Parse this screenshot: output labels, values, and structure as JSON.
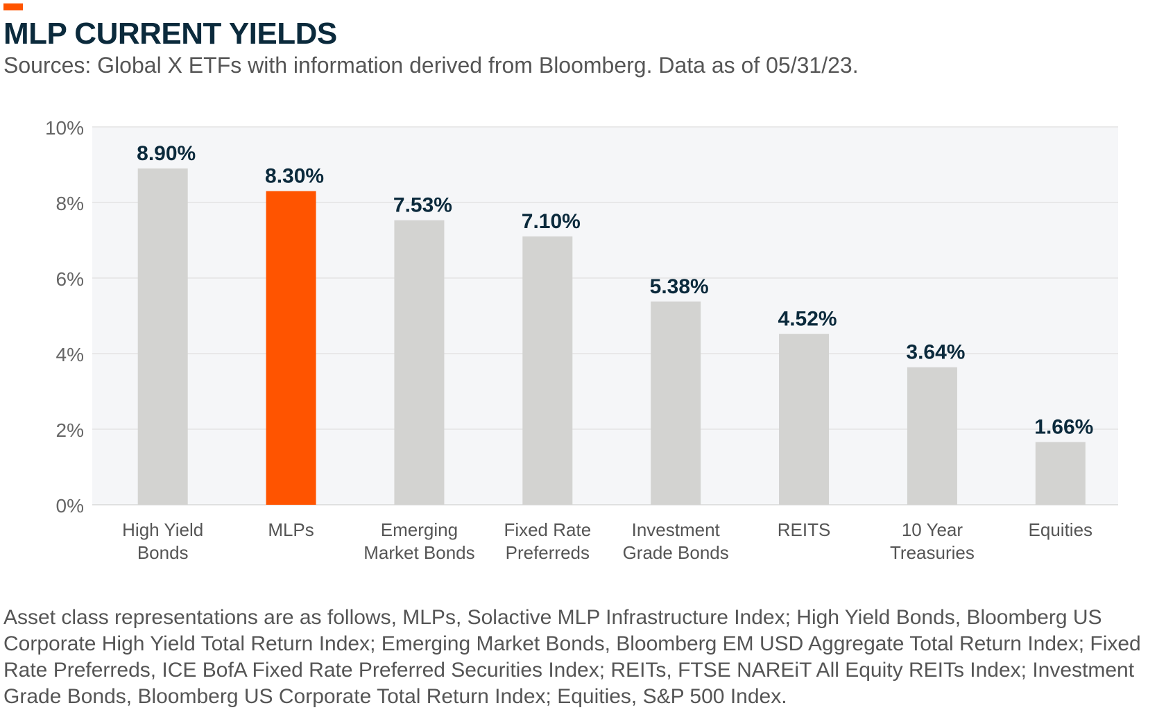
{
  "header": {
    "title": "MLP CURRENT YIELDS",
    "subtitle": "Sources: Global X ETFs with information derived from Bloomberg. Data as of 05/31/23."
  },
  "footnote": "Asset class representations are as follows, MLPs, Solactive MLP Infrastructure Index; High Yield Bonds, Bloomberg US Corporate High Yield Total Return Index; Emerging Market Bonds, Bloomberg EM USD Aggregate Total Return Index; Fixed Rate Preferreds, ICE BofA Fixed Rate Preferred Securities Index; REITs, FTSE NAREiT All Equity REITs Index; Investment Grade Bonds, Bloomberg US Corporate Total Return Index; Equities, S&P 500 Index.",
  "colors": {
    "accent": "#FF5400",
    "bar": "#D3D3D1",
    "plot_background": "#F5F6F8",
    "title": "#0B2A3C"
  },
  "chart_data": {
    "type": "bar",
    "title": "MLP CURRENT YIELDS",
    "categories": [
      [
        "High Yield",
        "Bonds"
      ],
      [
        "MLPs"
      ],
      [
        "Emerging",
        "Market Bonds"
      ],
      [
        "Fixed Rate",
        "Preferreds"
      ],
      [
        "Investment",
        "Grade Bonds"
      ],
      [
        "REITS"
      ],
      [
        "10 Year",
        "Treasuries"
      ],
      [
        "Equities"
      ]
    ],
    "values": [
      8.9,
      8.3,
      7.53,
      7.1,
      5.38,
      4.52,
      3.64,
      1.66
    ],
    "data_labels": [
      "8.90%",
      "8.30%",
      "7.53%",
      "7.10%",
      "5.38%",
      "4.52%",
      "3.64%",
      "1.66%"
    ],
    "highlight_index": 1,
    "ylim": [
      0,
      10
    ],
    "yticks": [
      0,
      2,
      4,
      6,
      8,
      10
    ],
    "ytick_labels": [
      "0%",
      "2%",
      "4%",
      "6%",
      "8%",
      "10%"
    ],
    "xlabel": "",
    "ylabel": "",
    "grid": true,
    "legend": "none"
  }
}
